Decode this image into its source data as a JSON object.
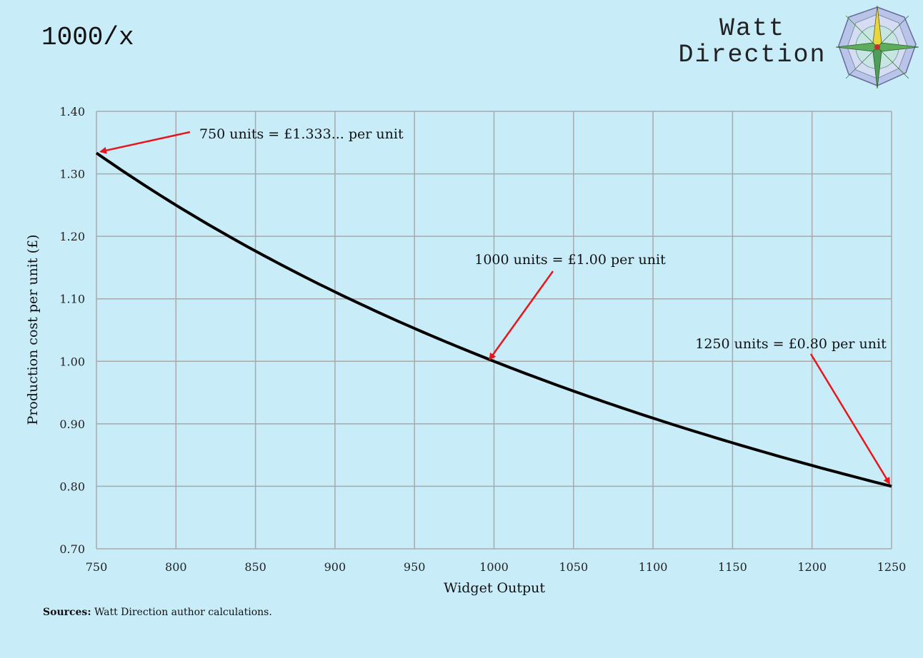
{
  "header": {
    "title": "1000/x",
    "brand_line1": "Watt",
    "brand_line2": "Direction"
  },
  "sources": {
    "label": "Sources:",
    "text": "Watt Direction author calculations."
  },
  "colors": {
    "background": "#c9ecf9",
    "grid": "#a9a9a9",
    "line": "#000000",
    "arrow": "#e8161b"
  },
  "chart_data": {
    "type": "line",
    "function": "1000/x",
    "title": "1000/x",
    "xlabel": "Widget Output",
    "ylabel": "Production cost per unit (£)",
    "xlim": [
      750,
      1250
    ],
    "ylim": [
      0.7,
      1.4
    ],
    "x_ticks": [
      750,
      800,
      850,
      900,
      950,
      1000,
      1050,
      1100,
      1150,
      1200,
      1250
    ],
    "x_tick_labels": [
      "750",
      "800",
      "850",
      "900",
      "950",
      "1000",
      "1050",
      "1100",
      "1150",
      "1200",
      "1250"
    ],
    "y_ticks": [
      0.7,
      0.8,
      0.9,
      1.0,
      1.1,
      1.2,
      1.3,
      1.4
    ],
    "y_tick_labels": [
      "0.70",
      "0.80",
      "0.90",
      "1.00",
      "1.10",
      "1.20",
      "1.30",
      "1.40"
    ],
    "grid": true,
    "series": [
      {
        "name": "1000/x",
        "x": [
          750,
          775,
          800,
          825,
          850,
          875,
          900,
          925,
          950,
          975,
          1000,
          1025,
          1050,
          1075,
          1100,
          1125,
          1150,
          1175,
          1200,
          1225,
          1250
        ],
        "values": [
          1.3333,
          1.2903,
          1.25,
          1.2121,
          1.1765,
          1.1429,
          1.1111,
          1.0811,
          1.0526,
          1.0256,
          1.0,
          0.9756,
          0.9524,
          0.9302,
          0.9091,
          0.8889,
          0.8696,
          0.8511,
          0.8333,
          0.8163,
          0.8
        ]
      }
    ],
    "annotations": [
      {
        "text": "750 units = £1.333... per unit",
        "x": 750,
        "y": 1.3333
      },
      {
        "text": "1000 units = £1.00 per unit",
        "x": 1000,
        "y": 1.0
      },
      {
        "text": "1250 units = £0.80 per unit",
        "x": 1250,
        "y": 0.8
      }
    ]
  }
}
